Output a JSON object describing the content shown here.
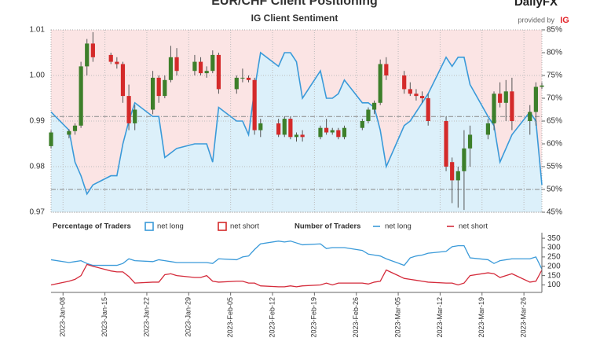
{
  "header": {
    "title": "EUR/CHF Client Positioning",
    "brand": "DailyFX",
    "provided_by": "provided by",
    "brand_mark": "IG"
  },
  "chart_data": [
    {
      "type": "candlestick",
      "title": "IG Client Sentiment",
      "x": [
        "2023-01-06",
        "2023-01-09",
        "2023-01-10",
        "2023-01-11",
        "2023-01-12",
        "2023-01-13",
        "2023-01-16",
        "2023-01-17",
        "2023-01-18",
        "2023-01-19",
        "2023-01-20",
        "2023-01-23",
        "2023-01-24",
        "2023-01-25",
        "2023-01-26",
        "2023-01-27",
        "2023-01-30",
        "2023-01-31",
        "2023-02-01",
        "2023-02-02",
        "2023-02-03",
        "2023-02-06",
        "2023-02-07",
        "2023-02-08",
        "2023-02-09",
        "2023-02-10",
        "2023-02-13",
        "2023-02-14",
        "2023-02-15",
        "2023-02-16",
        "2023-02-17",
        "2023-02-20",
        "2023-02-21",
        "2023-02-22",
        "2023-02-23",
        "2023-02-24",
        "2023-02-27",
        "2023-02-28",
        "2023-03-01",
        "2023-03-02",
        "2023-03-03",
        "2023-03-06",
        "2023-03-07",
        "2023-03-08",
        "2023-03-09",
        "2023-03-10",
        "2023-03-13",
        "2023-03-14",
        "2023-03-15",
        "2023-03-16",
        "2023-03-17",
        "2023-03-20",
        "2023-03-21",
        "2023-03-22",
        "2023-03-23",
        "2023-03-24",
        "2023-03-27",
        "2023-03-28",
        "2023-03-29"
      ],
      "open": [
        0.9845,
        0.987,
        0.9878,
        0.989,
        1.002,
        1.007,
        1.0045,
        1.003,
        1.0025,
        0.9955,
        0.9895,
        0.9925,
        0.9995,
        0.9955,
        0.999,
        1.004,
        1.001,
        1.003,
        1.0005,
        1.001,
        1.0045,
        0.997,
        0.9995,
        0.9995,
        0.999,
        0.988,
        0.9895,
        0.987,
        0.9905,
        0.9865,
        0.987,
        0.9865,
        0.9885,
        0.9875,
        0.988,
        0.9865,
        0.9885,
        0.99,
        0.9925,
        0.994,
        1.0025,
        1.0,
        0.997,
        0.996,
        0.9955,
        0.995,
        0.99,
        0.981,
        0.977,
        0.979,
        0.984,
        0.987,
        0.9895,
        0.996,
        0.994,
        0.9965,
        0.99,
        0.992,
        0.9975
      ],
      "high": [
        0.988,
        0.9882,
        0.9895,
        1.003,
        1.008,
        1.0095,
        1.005,
        1.004,
        1.003,
        0.998,
        0.9935,
        1.001,
        1.0,
        1.0,
        1.0065,
        1.006,
        1.0045,
        1.004,
        1.002,
        1.0055,
        1.005,
        1.0,
        1.0015,
        1.0,
        0.9995,
        0.9905,
        0.9905,
        0.991,
        0.991,
        0.9875,
        0.988,
        0.989,
        0.9905,
        0.9885,
        0.9885,
        0.989,
        0.9905,
        0.993,
        0.9945,
        1.0035,
        1.004,
        1.001,
        0.9985,
        0.997,
        0.9965,
        0.996,
        0.991,
        0.982,
        0.98,
        0.988,
        0.989,
        0.9905,
        0.9965,
        0.9985,
        0.999,
        0.9995,
        0.9935,
        0.9985,
        0.9985
      ],
      "low": [
        0.984,
        0.9862,
        0.987,
        0.9885,
        1.0,
        1.003,
        1.0025,
        1.0015,
        0.994,
        0.988,
        0.988,
        0.9915,
        0.994,
        0.995,
        0.9985,
        1.0,
        1.0,
        1.0,
        0.9995,
        1.0005,
        0.996,
        0.996,
        0.9985,
        0.9985,
        0.987,
        0.9865,
        0.9865,
        0.9865,
        0.986,
        0.9855,
        0.9855,
        0.986,
        0.987,
        0.987,
        0.986,
        0.986,
        0.988,
        0.9895,
        0.9915,
        0.9935,
        0.999,
        0.996,
        0.9955,
        0.9945,
        0.994,
        0.989,
        0.979,
        0.972,
        0.971,
        0.9705,
        0.98,
        0.986,
        0.988,
        0.993,
        0.99,
        0.988,
        0.987,
        0.989,
        0.997
      ],
      "close": [
        0.9875,
        0.9878,
        0.989,
        1.002,
        1.007,
        1.004,
        1.003,
        1.0025,
        0.9955,
        0.9895,
        0.9925,
        0.9995,
        0.9955,
        0.999,
        1.004,
        1.001,
        1.003,
        1.0005,
        1.001,
        1.0045,
        0.997,
        0.9995,
        0.9995,
        0.999,
        0.988,
        0.9895,
        0.987,
        0.9905,
        0.9865,
        0.987,
        0.9865,
        0.9885,
        0.9875,
        0.988,
        0.9865,
        0.9885,
        0.99,
        0.9925,
        0.994,
        1.0025,
        1.0,
        0.997,
        0.996,
        0.9955,
        0.995,
        0.99,
        0.98,
        0.977,
        0.979,
        0.984,
        0.987,
        0.9895,
        0.996,
        0.994,
        0.9965,
        0.99,
        0.992,
        0.9975,
        0.9978
      ],
      "up_color": "#3d7f2a",
      "down_color": "#d42a2a",
      "xlim": [
        "2023-01-06",
        "2023-03-29"
      ],
      "xticks": [
        {
          "value": "2023-01-08",
          "label": "2023-Jan-08"
        },
        {
          "value": "2023-01-15",
          "label": "2023-Jan-15"
        },
        {
          "value": "2023-01-22",
          "label": "2023-Jan-22"
        },
        {
          "value": "2023-01-29",
          "label": "2023-Jan-29"
        },
        {
          "value": "2023-02-05",
          "label": "2023-Feb-05"
        },
        {
          "value": "2023-02-12",
          "label": "2023-Feb-12"
        },
        {
          "value": "2023-02-19",
          "label": "2023-Feb-19"
        },
        {
          "value": "2023-02-26",
          "label": "2023-Feb-26"
        },
        {
          "value": "2023-03-05",
          "label": "2023-Mar-05"
        },
        {
          "value": "2023-03-12",
          "label": "2023-Mar-12"
        },
        {
          "value": "2023-03-19",
          "label": "2023-Mar-19"
        },
        {
          "value": "2023-03-26",
          "label": "2023-Mar-26"
        }
      ],
      "ylim": [
        0.97,
        1.01
      ],
      "yticks": [
        0.97,
        0.98,
        0.99,
        {
          "value": 1,
          "label": "1.00"
        },
        1.01
      ],
      "y2lim": [
        45,
        85
      ],
      "y2ticks": [
        {
          "value": 45,
          "label": "45%"
        },
        {
          "value": 50,
          "label": "50%"
        },
        {
          "value": 55,
          "label": "55%"
        },
        {
          "value": 60,
          "label": "60%"
        },
        {
          "value": 65,
          "label": "65%"
        },
        {
          "value": 70,
          "label": "70%"
        },
        {
          "value": 75,
          "label": "75%"
        },
        {
          "value": 80,
          "label": "80%"
        },
        {
          "value": 85,
          "label": "85%"
        }
      ],
      "reference_lines": [
        0.991,
        0.975
      ],
      "grid": true,
      "legend_title": "Percentage of Traders",
      "legend": [
        {
          "name": "net long",
          "color": "#3a9ad9"
        },
        {
          "name": "net short",
          "color": "#d42a2a"
        }
      ],
      "series": [
        {
          "name": "net long",
          "color": "#3a9ad9",
          "axis": "y2",
          "values": [
            67,
            63,
            56,
            53,
            49,
            51,
            53,
            53,
            60,
            65,
            69,
            66,
            66,
            57,
            58,
            59,
            60,
            60,
            60,
            56,
            68,
            65,
            65,
            62,
            72,
            80,
            77,
            80,
            80,
            78,
            70,
            76,
            70,
            70,
            71,
            74,
            69,
            69,
            68,
            63,
            55,
            64,
            65,
            67,
            69,
            71,
            79,
            77,
            79,
            79,
            73,
            66,
            64,
            56,
            59,
            62,
            67,
            65,
            51
          ]
        }
      ]
    },
    {
      "type": "line",
      "legend_title": "Number of Traders",
      "ylim": [
        60,
        380
      ],
      "yticks": [
        100,
        150,
        200,
        250,
        300,
        350
      ],
      "series": [
        {
          "name": "net long",
          "color": "#3a9ad9",
          "values": [
            235,
            220,
            225,
            230,
            215,
            205,
            205,
            205,
            215,
            240,
            230,
            225,
            235,
            230,
            225,
            220,
            220,
            220,
            220,
            215,
            240,
            235,
            250,
            255,
            290,
            320,
            335,
            330,
            335,
            325,
            315,
            320,
            295,
            300,
            300,
            300,
            285,
            265,
            260,
            255,
            240,
            205,
            245,
            255,
            260,
            270,
            280,
            305,
            310,
            310,
            245,
            235,
            215,
            230,
            235,
            240,
            240,
            250,
            185
          ]
        },
        {
          "name": "net short",
          "color": "#d42a3a",
          "values": [
            100,
            120,
            130,
            150,
            210,
            200,
            175,
            170,
            170,
            145,
            110,
            115,
            115,
            155,
            160,
            150,
            140,
            140,
            150,
            120,
            115,
            120,
            120,
            110,
            110,
            95,
            90,
            90,
            95,
            90,
            95,
            100,
            110,
            100,
            110,
            110,
            110,
            105,
            115,
            120,
            180,
            135,
            130,
            125,
            120,
            115,
            110,
            110,
            100,
            110,
            150,
            165,
            160,
            140,
            150,
            160,
            115,
            120,
            180
          ]
        }
      ]
    }
  ]
}
